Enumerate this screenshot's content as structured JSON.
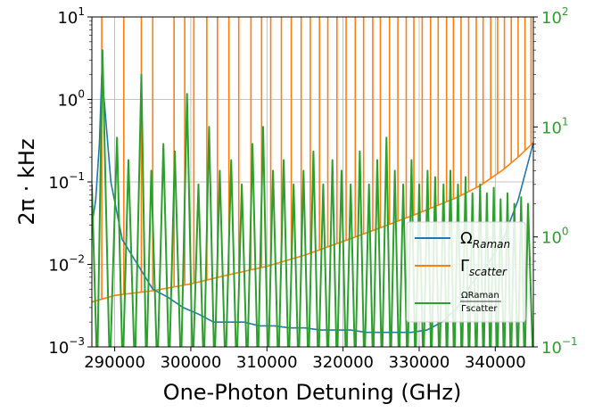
{
  "chart_data": {
    "type": "line",
    "xlabel": "One-Photon Detuning (GHz)",
    "ylabel": "2π · kHz",
    "xlim": [
      287000,
      345000
    ],
    "ylim_left": [
      0.001,
      10
    ],
    "ylim_right": [
      0.1,
      100
    ],
    "yscale_left": "log",
    "yscale_right": "log",
    "grid": true,
    "legend_position": "lower-right",
    "x_ticks": [
      {
        "value": 290000,
        "label": "290000"
      },
      {
        "value": 300000,
        "label": "300000"
      },
      {
        "value": 310000,
        "label": "310000"
      },
      {
        "value": 320000,
        "label": "320000"
      },
      {
        "value": 330000,
        "label": "330000"
      },
      {
        "value": 340000,
        "label": "340000"
      }
    ],
    "y_ticks_left": [
      {
        "value": 0.001,
        "base": "10",
        "exp": "−3"
      },
      {
        "value": 0.01,
        "base": "10",
        "exp": "−2"
      },
      {
        "value": 0.1,
        "base": "10",
        "exp": "−1"
      },
      {
        "value": 1,
        "base": "10",
        "exp": "0"
      },
      {
        "value": 10,
        "base": "10",
        "exp": "1"
      }
    ],
    "y_ticks_right": [
      {
        "value": 0.1,
        "base": "10",
        "exp": "−1"
      },
      {
        "value": 1,
        "base": "10",
        "exp": "0"
      },
      {
        "value": 10,
        "base": "10",
        "exp": "1"
      },
      {
        "value": 100,
        "base": "10",
        "exp": "2"
      }
    ],
    "series": [
      {
        "name": "ΩRaman",
        "label_main": "Ω",
        "label_sub": "Raman",
        "color": "#1f77b4",
        "axis": "left",
        "x": [
          287000,
          287500,
          288000,
          288300,
          288700,
          289500,
          291000,
          293000,
          295000,
          297000,
          299000,
          301000,
          303000,
          305000,
          307000,
          309000,
          311000,
          313000,
          315000,
          317000,
          319000,
          321000,
          323000,
          325000,
          327000,
          329000,
          331000,
          333000,
          335000,
          337000,
          339000,
          341000,
          343000,
          345000
        ],
        "y": [
          0.03,
          0.06,
          0.3,
          2.0,
          0.8,
          0.1,
          0.02,
          0.01,
          0.005,
          0.004,
          0.003,
          0.0025,
          0.002,
          0.002,
          0.002,
          0.0018,
          0.0018,
          0.0017,
          0.0017,
          0.0016,
          0.0016,
          0.0016,
          0.0015,
          0.0015,
          0.0015,
          0.0015,
          0.0016,
          0.002,
          0.003,
          0.006,
          0.01,
          0.02,
          0.06,
          0.3
        ]
      },
      {
        "name": "Γscatter",
        "label_main": "Γ",
        "label_sub": "scatter",
        "color": "#ff7f0e",
        "axis": "left",
        "x": [
          287000,
          290000,
          295000,
          300000,
          305000,
          310000,
          315000,
          320000,
          325000,
          330000,
          335000,
          338000,
          341000,
          343000,
          345000
        ],
        "y": [
          0.0035,
          0.0042,
          0.0048,
          0.0058,
          0.0075,
          0.0095,
          0.013,
          0.019,
          0.028,
          0.042,
          0.065,
          0.09,
          0.14,
          0.2,
          0.3
        ],
        "spikes_x": [
          288300,
          291200,
          293500,
          295000,
          297800,
          299200,
          300400,
          302100,
          303500,
          305000,
          306300,
          307900,
          309300,
          310500,
          311900,
          313200,
          314500,
          315700,
          316900,
          318000,
          319200,
          320400,
          321600,
          322700,
          323900,
          324900,
          326100,
          327200,
          328300,
          329300,
          330400,
          331500,
          332500,
          333600,
          334500,
          335500,
          336500,
          337500,
          338400,
          339400,
          340300,
          341200,
          342100,
          343000,
          343900,
          344700
        ],
        "spike_top": 10
      },
      {
        "name": "ΩRaman/Γscatter",
        "label_num": "ΩRaman",
        "label_den": "Γscatter",
        "color": "#2ca02c",
        "axis": "right",
        "peaks_x": [
          287000,
          288400,
          290300,
          291800,
          293500,
          294800,
          296400,
          297900,
          299500,
          301000,
          302400,
          303800,
          305300,
          306700,
          308100,
          309500,
          310800,
          312200,
          313500,
          314800,
          316100,
          317400,
          318600,
          319800,
          321000,
          322200,
          323400,
          324500,
          325700,
          326800,
          327900,
          329000,
          330000,
          331100,
          332100,
          333200,
          334100,
          335100,
          336100,
          337000,
          338000,
          338900,
          339800,
          340700,
          341600,
          342500,
          343400,
          344300
        ],
        "peaks_y": [
          3.0,
          50.0,
          8.0,
          5.0,
          30.0,
          4.0,
          7.0,
          6.0,
          20.0,
          3.0,
          10.0,
          4.0,
          5.0,
          3.0,
          7.0,
          10.0,
          4.0,
          5.0,
          3.0,
          4.0,
          6.0,
          3.0,
          5.0,
          4.0,
          3.0,
          6.0,
          3.0,
          5.0,
          8.0,
          4.0,
          3.0,
          5.0,
          3.0,
          4.0,
          3.5,
          3.0,
          4.0,
          3.0,
          3.5,
          2.5,
          3.0,
          2.5,
          2.8,
          2.2,
          2.5,
          2.0,
          2.3,
          2.0
        ]
      }
    ]
  }
}
